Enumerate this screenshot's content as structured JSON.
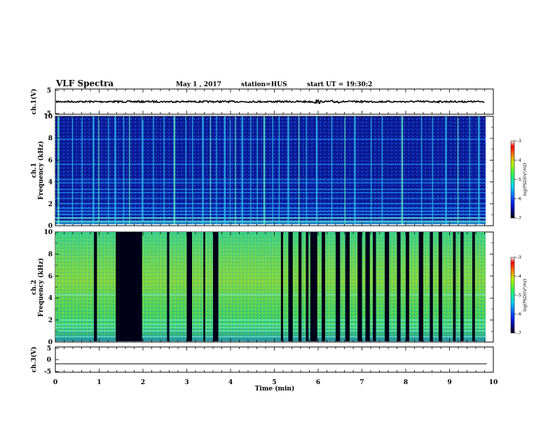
{
  "header": {
    "title": "VLF Spectra",
    "date": "May 1 , 2017",
    "station": "station=HUS",
    "start": "start UT = 19:30:2"
  },
  "chart_data": [
    {
      "type": "line",
      "panel": "ch1-waveform",
      "ylabel": "ch.1(V)",
      "ylim": [
        -5,
        5
      ],
      "yticks": [
        "5",
        "-5"
      ],
      "series": [
        {
          "values": [
            0
          ]
        }
      ]
    },
    {
      "type": "heatmap",
      "panel": "ch1-spectrogram",
      "ylabel": "ch.1 Frequency (kHz)",
      "ylim": [
        0,
        10
      ],
      "yticks": [
        "0",
        "2",
        "4",
        "6",
        "8",
        "10"
      ],
      "xlim": [
        0,
        9.85
      ],
      "colorbar": {
        "label": "log(PSD)(V²/Hz)",
        "ticks": [
          "-3",
          "-4",
          "-5",
          "-6",
          "-7"
        ],
        "range": [
          -7,
          -3
        ]
      },
      "bursts_min": [
        0.05,
        0.38,
        0.6,
        0.85,
        0.98,
        1.2,
        1.35,
        1.55,
        1.68,
        1.97,
        2.23,
        2.47,
        2.7,
        2.97,
        3.12,
        3.35,
        3.53,
        3.67,
        3.85,
        3.98,
        4.1,
        4.25,
        4.45,
        4.6,
        4.75,
        4.95,
        5.1,
        5.3,
        5.55,
        5.72,
        5.95,
        6.3,
        6.6,
        6.82,
        7.2,
        7.45,
        7.9,
        8.35,
        8.6,
        8.9,
        9.18,
        9.45,
        9.65
      ],
      "bands_khz": [
        0.4,
        0.7,
        1.0,
        1.3,
        1.6,
        2.0,
        2.5,
        3.0,
        3.3,
        3.9,
        4.2,
        5.6,
        7.9
      ]
    },
    {
      "type": "heatmap",
      "panel": "ch2-spectrogram",
      "ylabel": "ch.2 Frequency (kHz)",
      "ylim": [
        0,
        10
      ],
      "yticks": [
        "0",
        "2",
        "4",
        "6",
        "8",
        "10"
      ],
      "xlim": [
        0,
        9.85
      ],
      "colorbar": {
        "label": "log(PSD)(V²/Hz)",
        "ticks": [
          "-3",
          "-4",
          "-5",
          "-6",
          "-7"
        ],
        "range": [
          -7,
          -3
        ]
      },
      "quiet_intervals_min": [
        [
          0.88,
          0.95
        ],
        [
          1.38,
          1.45
        ],
        [
          1.45,
          1.98
        ],
        [
          2.55,
          2.6
        ],
        [
          3.0,
          3.12
        ],
        [
          3.38,
          3.42
        ],
        [
          3.6,
          3.72
        ],
        [
          5.15,
          5.2
        ],
        [
          5.32,
          5.42
        ],
        [
          5.55,
          5.62
        ],
        [
          5.72,
          5.78
        ],
        [
          5.82,
          5.98
        ],
        [
          6.08,
          6.16
        ],
        [
          6.4,
          6.5
        ],
        [
          6.62,
          6.72
        ],
        [
          6.9,
          7.0
        ],
        [
          7.08,
          7.18
        ],
        [
          7.25,
          7.32
        ],
        [
          7.52,
          7.62
        ],
        [
          7.8,
          7.88
        ],
        [
          8.0,
          8.08
        ],
        [
          8.3,
          8.4
        ],
        [
          8.55,
          8.62
        ],
        [
          8.75,
          8.83
        ],
        [
          9.08,
          9.14
        ],
        [
          9.25,
          9.32
        ],
        [
          9.52,
          9.58
        ]
      ],
      "bands_khz": [
        0.5,
        1.0,
        1.3,
        1.6,
        2.0,
        4.3
      ]
    },
    {
      "type": "line",
      "panel": "ch3-waveform",
      "ylabel": "ch.3(V)",
      "ylim": [
        -5,
        5
      ],
      "yticks": [
        "5",
        "0",
        "-5"
      ],
      "series": [
        {
          "values": [
            -2
          ]
        }
      ],
      "xlabel": "Time (min)",
      "xticks": [
        "0",
        "1",
        "2",
        "3",
        "4",
        "5",
        "6",
        "7",
        "8",
        "9",
        "10"
      ],
      "xlim": [
        0,
        10
      ]
    }
  ]
}
